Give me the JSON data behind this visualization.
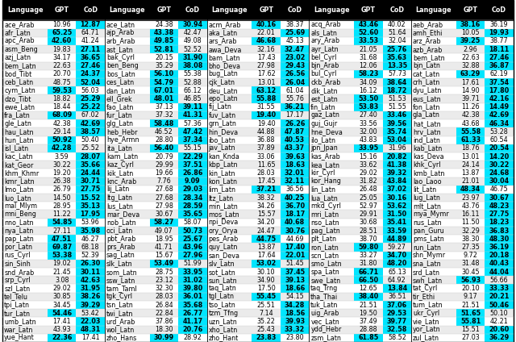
{
  "rows": [
    [
      "ace_Arab",
      10.96,
      12.87,
      "ace_Latn",
      24.38,
      30.94,
      "acm_Arab",
      40.16,
      38.37,
      "acq_Arab",
      43.46,
      40.02,
      "aeb_Arab",
      38.16,
      36.19
    ],
    [
      "afr_Latn",
      65.25,
      64.71,
      "ajp_Arab",
      43.38,
      42.47,
      "aka_Latn",
      22.01,
      25.69,
      "als_Latn",
      52.6,
      51.64,
      "amh_Ethi",
      10.05,
      19.93
    ],
    [
      "apc_Arab",
      42.6,
      41.24,
      "arb_Arab",
      49.85,
      49.08,
      "ars_Arab",
      46.68,
      45.13,
      "ary_Arab",
      33.53,
      32.04,
      "arz_Arab",
      39.25,
      38.77
    ],
    [
      "asm_Beng",
      19.83,
      27.11,
      "ast_Latn",
      52.81,
      52.52,
      "awa_Deva",
      32.16,
      32.47,
      "ayr_Latn",
      21.05,
      25.76,
      "azb_Arab",
      2.96,
      18.11
    ],
    [
      "azj_Latn",
      34.17,
      36.65,
      "bak_Cyrl",
      20.15,
      31.9,
      "bam_Latn",
      17.43,
      23.02,
      "bel_Cyrl",
      31.68,
      35.63,
      "bem_Latn",
      22.63,
      27.46
    ],
    [
      "bem_Latn",
      22.63,
      27.46,
      "ben_Beng",
      35.29,
      38.08,
      "bho_Deva",
      27.98,
      29.43,
      "bjn_Arab",
      12.06,
      13.35,
      "bjn_Latn",
      32.88,
      36.87
    ],
    [
      "bod_Tibt",
      20.7,
      24.37,
      "bos_Latn",
      56.1,
      55.38,
      "bug_Latn",
      17.62,
      26.56,
      "bul_Cyrl",
      58.23,
      57.73,
      "cat_Latn",
      63.29,
      62.19
    ],
    [
      "ceb_Latn",
      48.75,
      52.04,
      "ces_Latn",
      54.79,
      52.88,
      "cjk_Latn",
      13.01,
      26.04,
      "ckb_Arab",
      34.09,
      38.64,
      "crh_Latn",
      17.61,
      37.54
    ],
    [
      "cym_Latn",
      59.53,
      56.03,
      "dan_Latn",
      67.01,
      66.12,
      "deu_Latn",
      63.12,
      61.04,
      "dik_Latn",
      16.12,
      18.72,
      "dyu_Latn",
      14.9,
      17.8
    ],
    [
      "dzo_Tibt",
      18.82,
      25.29,
      "ell_Grek",
      48.01,
      46.85,
      "epo_Latn",
      55.88,
      55.76,
      "est_Latn",
      53.5,
      51.53,
      "eus_Latn",
      39.71,
      42.16
    ],
    [
      "ewe_Latn",
      18.44,
      25.22,
      "fao_Latn",
      37.13,
      39.11,
      "fij_Latn",
      31.55,
      36.21,
      "fin_Latn",
      53.83,
      51.55,
      "fon_Latn",
      11.26,
      14.49
    ],
    [
      "fra_Latn",
      68.09,
      67.02,
      "fur_Latn",
      37.32,
      41.31,
      "fuv_Latn",
      19.4,
      17.17,
      "gaz_Latn",
      27.4,
      33.46,
      "gla_Latn",
      42.38,
      42.69
    ],
    [
      "gle_Latn",
      42.38,
      42.69,
      "glg_Latn",
      58.48,
      57.36,
      "grn_Latn",
      19.4,
      26.26,
      "guj_Gujr",
      33.56,
      39.56,
      "hat_Latn",
      43.68,
      46.34
    ],
    [
      "hau_Latn",
      29.14,
      38.57,
      "heb_Hebr",
      46.52,
      47.42,
      "hin_Deva",
      44.88,
      47.87,
      "hne_Deva",
      32.0,
      35.74,
      "hrv_Latn",
      55.58,
      53.28
    ],
    [
      "hun_Latn",
      50.92,
      50.4,
      "hye_Armn",
      28.8,
      37.34,
      "ibo_Latn",
      36.88,
      40.53,
      "ilo_Latn",
      43.83,
      53.04,
      "ind_Latn",
      61.33,
      60.54
    ],
    [
      "isl_Latn",
      42.28,
      25.52,
      "ita_Latn",
      56.4,
      55.15,
      "jav_Latn",
      37.89,
      43.37,
      "jpn_Jpan",
      33.95,
      31.96,
      "kab_Latn",
      18.76,
      20.54
    ],
    [
      "kac_Latn",
      3.59,
      28.07,
      "kam_Latn",
      20.79,
      22.29,
      "kan_Knda",
      33.06,
      39.63,
      "kas_Arab",
      15.16,
      20.82,
      "kas_Deva",
      13.01,
      14.2
    ],
    [
      "kat_Geor",
      30.22,
      35.66,
      "kaz_Cyrl",
      29.99,
      37.51,
      "kbp_Latn",
      11.65,
      18.63,
      "kea_Latn",
      33.62,
      41.38,
      "khk_Cyrl",
      24.14,
      30.22
    ],
    [
      "khm_Khmr",
      19.2,
      24.44,
      "kik_Latn",
      19.66,
      26.86,
      "kin_Latn",
      28.03,
      32.01,
      "kir_Cyrl",
      29.02,
      39.32,
      "kmb_Latn",
      13.87,
      24.68
    ],
    [
      "kmr_Latn",
      26.38,
      30.71,
      "knc_Arab",
      7.76,
      9.09,
      "kon_Latn",
      17.45,
      32.11,
      "kor_Hang",
      31.82,
      43.84,
      "lao_Laoo",
      21.01,
      30.04
    ],
    [
      "lmo_Latn",
      26.79,
      27.75,
      "lij_Latn",
      27.68,
      29.03,
      "lim_Latn",
      37.21,
      36.56,
      "lin_Latn",
      26.48,
      37.02,
      "lit_Latn",
      48.34,
      46.75
    ],
    [
      "luo_Latn",
      14.5,
      15.52,
      "ltg_Latn",
      27.68,
      28.34,
      "ltz_Latn",
      38.32,
      40.25,
      "lua_Latn",
      25.05,
      30.16,
      "lug_Latn",
      23.97,
      30.67
    ],
    [
      "mal_Mlym",
      28.95,
      35.13,
      "lus_Latn",
      27.98,
      28.59,
      "min_Latn",
      34.26,
      36.7,
      "mkd_Cyrl",
      52.97,
      53.62,
      "mlt_Latn",
      43.76,
      48.23
    ],
    [
      "mni_Beng",
      11.22,
      17.95,
      "mar_Deva",
      30.67,
      35.65,
      "mos_Latn",
      15.57,
      18.17,
      "mri_Latn",
      29.91,
      31.5,
      "mya_Mymr",
      16.11,
      27.75
    ],
    [
      "nno_Latn",
      54.85,
      53.96,
      "nob_Latn",
      58.27,
      58.07,
      "npi_Deva",
      34.2,
      40.68,
      "nso_Latn",
      30.68,
      35.41,
      "nus_Latn",
      11.5,
      18.23
    ],
    [
      "nya_Latn",
      27.11,
      35.98,
      "oci_Latn",
      49.07,
      50.73,
      "ory_Orya",
      24.47,
      30.76,
      "pag_Latn",
      28.51,
      33.59,
      "pan_Guru",
      32.29,
      36.83
    ],
    [
      "pap_Latn",
      47.51,
      46.27,
      "pbt_Arab",
      18.95,
      25.67,
      "pes_Arab",
      44.75,
      44.69,
      "plt_Latn",
      38.7,
      44.89,
      "pms_Latn",
      38.3,
      48.3
    ],
    [
      "por_Latn",
      69.87,
      68.18,
      "prs_Arab",
      41.71,
      43.96,
      "quy_Latn",
      13.87,
      17.4,
      "ron_Latn",
      59.8,
      59.27,
      "run_Latn",
      27.35,
      36.19
    ],
    [
      "rus_Cyrl",
      53.38,
      52.39,
      "sag_Latn",
      15.67,
      27.96,
      "san_Deva",
      17.64,
      22.01,
      "scn_Latn",
      33.27,
      34.7,
      "shn_Mymr",
      9.72,
      20.18
    ],
    [
      "sin_Sinh",
      19.02,
      26.3,
      "slk_Latn",
      53.49,
      51.99,
      "slv_Latn",
      53.02,
      51.45,
      "smo_Latn",
      31.8,
      48.2,
      "sna_Latn",
      31.48,
      40.43
    ],
    [
      "snd_Arab",
      21.45,
      30.11,
      "som_Latn",
      28.75,
      33.95,
      "sot_Latn",
      30.1,
      37.45,
      "spa_Latn",
      66.71,
      65.13,
      "srd_Latn",
      30.45,
      44.04
    ],
    [
      "srp_Cyrl",
      3.08,
      42.63,
      "ssw_Latn",
      23.12,
      31.02,
      "sun_Latn",
      34.9,
      39.13,
      "swe_Latn",
      66.5,
      64.92,
      "swh_Latn",
      56.93,
      56.66
    ],
    [
      "szl_Latn",
      29.02,
      31.95,
      "tam_Taml",
      32.3,
      39.8,
      "taq_Latn",
      17.5,
      18.66,
      "taq_Trng",
      12.65,
      13.84,
      "tat_Cyrl",
      20.1,
      33.33
    ],
    [
      "tel_Telu",
      30.85,
      38.26,
      "tgk_Cyrl",
      28.03,
      36.01,
      "tgl_Latn",
      55.45,
      54.15,
      "tha_Thai",
      38.4,
      36.51,
      "tir_Ethi",
      9.17,
      20.21
    ],
    [
      "tpi_Latn",
      34.45,
      39.29,
      "tsn_Latn",
      26.84,
      35.68,
      "tso_Latn",
      25.51,
      34.28,
      "tuk_Latn",
      21.51,
      37.06,
      "tum_Latn",
      21.51,
      50.46
    ],
    [
      "tur_Latn",
      54.46,
      53.42,
      "twi_Latn",
      22.84,
      26.77,
      "tzm_Tfng",
      7.14,
      18.56,
      "uig_Arab",
      19.5,
      29.53,
      "ukr_Cyrl",
      51.65,
      50.1
    ],
    [
      "umb_Latn",
      17.41,
      22.03,
      "urd_Arab",
      37.86,
      41.17,
      "uzn_Latn",
      35.22,
      39.93,
      "vec_Latn",
      37.49,
      39.77,
      "vie_Latn",
      55.81,
      42.21
    ],
    [
      "war_Latn",
      43.93,
      48.31,
      "wol_Latn",
      18.3,
      20.76,
      "xho_Latn",
      25.43,
      33.32,
      "ydd_Hebr",
      28.88,
      32.58,
      "yor_Latn",
      15.51,
      20.6
    ],
    [
      "yue_Hant",
      22.36,
      17.41,
      "zho_Hans",
      30.99,
      28.92,
      "zho_Hant",
      23.83,
      23.8,
      "zsm_Latn",
      61.85,
      58.52,
      "zul_Latn",
      27.03,
      36.29
    ]
  ],
  "header_bg": "#000000",
  "header_text": "#ffffff",
  "highlight_color": "#00e5ff",
  "row_bg_even": "#ffffff",
  "row_bg_odd": "#ebebeb",
  "fontsize": 5.8,
  "divider_color": "#888888"
}
